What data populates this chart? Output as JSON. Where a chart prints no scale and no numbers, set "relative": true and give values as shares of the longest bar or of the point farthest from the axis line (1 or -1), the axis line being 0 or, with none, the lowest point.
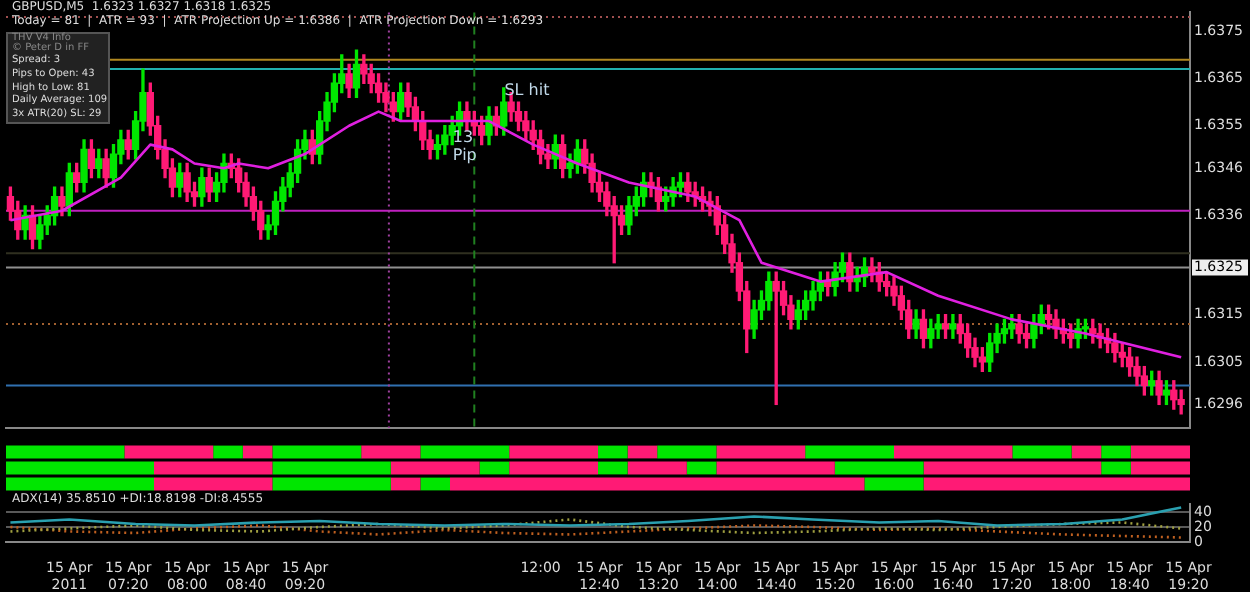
{
  "chart_data": [
    {
      "type": "candlestick",
      "title": "GBPUSD,M5  1.6323 1.6327 1.6318 1.6325",
      "subtitle": "Today = 81  |  ATR = 93  |  ATR Projection Up = 1.6386  |  ATR Projection Down = 1.6293",
      "colors": [
        "#ff1a75",
        "#ff1a75",
        "#00e600",
        "#ff1a75",
        "#00e600",
        "#00e600",
        "#00e600",
        "#ff1a75",
        "#00e600",
        "#ff1a75",
        "#00e600",
        "#ff1a75",
        "#00e600",
        "#ff1a75",
        "#00e600",
        "#00e600",
        "#ff1a75",
        "#00e600",
        "#00e600",
        "#ff1a75",
        "#ff1a75",
        "#ff1a75",
        "#ff1a75",
        "#00e600",
        "#ff1a75",
        "#ff1a75",
        "#00e600",
        "#ff1a75",
        "#00e600",
        "#00e600",
        "#ff1a75",
        "#ff1a75",
        "#ff1a75",
        "#ff1a75",
        "#ff1a75",
        "#00e600",
        "#00e600",
        "#00e600",
        "#00e600",
        "#00e600",
        "#00e600",
        "#ff1a75",
        "#00e600",
        "#00e600",
        "#00e600",
        "#00e600",
        "#ff1a75",
        "#00e600",
        "#ff1a75",
        "#ff1a75",
        "#ff1a75",
        "#ff1a75",
        "#ff1a75",
        "#00e600",
        "#ff1a75",
        "#ff1a75",
        "#ff1a75",
        "#ff1a75",
        "#00e600",
        "#00e600",
        "#00e600",
        "#00e600",
        "#ff1a75",
        "#ff1a75",
        "#ff1a75",
        "#00e600",
        "#ff1a75",
        "#00e600",
        "#ff1a75",
        "#ff1a75",
        "#ff1a75",
        "#ff1a75",
        "#ff1a75",
        "#ff1a75",
        "#00e600",
        "#ff1a75",
        "#00e600",
        "#00e600",
        "#ff1a75",
        "#ff1a75",
        "#ff1a75",
        "#ff1a75",
        "#ff1a75",
        "#ff1a75",
        "#00e600",
        "#00e600",
        "#00e600",
        "#ff1a75",
        "#ff1a75",
        "#00e600",
        "#00e600",
        "#00e600",
        "#ff1a75",
        "#ff1a75",
        "#ff1a75",
        "#ff1a75",
        "#ff1a75",
        "#ff1a75",
        "#ff1a75",
        "#ff1a75",
        "#ff1a75",
        "#00e600",
        "#00e600",
        "#00e600",
        "#ff1a75",
        "#ff1a75",
        "#ff1a75",
        "#00e600",
        "#00e600",
        "#00e600",
        "#00e600",
        "#ff1a75",
        "#00e600",
        "#00e600",
        "#ff1a75",
        "#00e600",
        "#00e600",
        "#ff1a75",
        "#ff1a75",
        "#ff1a75",
        "#ff1a75",
        "#ff1a75",
        "#ff1a75",
        "#00e600",
        "#ff1a75",
        "#00e600",
        "#00e600",
        "#ff1a75",
        "#00e600",
        "#ff1a75",
        "#ff1a75",
        "#ff1a75",
        "#ff1a75",
        "#00e600",
        "#00e600",
        "#00e600",
        "#00e600",
        "#ff1a75",
        "#ff1a75",
        "#00e600",
        "#00e600",
        "#ff1a75",
        "#ff1a75",
        "#ff1a75",
        "#ff1a75",
        "#00e600",
        "#00e600",
        "#ff1a75",
        "#ff1a75",
        "#ff1a75",
        "#ff1a75",
        "#ff1a75",
        "#ff1a75",
        "#ff1a75",
        "#ff1a75",
        "#00e600",
        "#ff1a75",
        "#00e600",
        "#ff1a75",
        "#ff1a75"
      ],
      "x": [
        "2011-04-15T06:00",
        "2011-04-15T06:05",
        "2011-04-15T06:10",
        "2011-04-15T06:15",
        "2011-04-15T06:20",
        "2011-04-15T06:25",
        "2011-04-15T06:30",
        "2011-04-15T06:35",
        "2011-04-15T06:40",
        "2011-04-15T06:45",
        "2011-04-15T06:50",
        "2011-04-15T06:55",
        "2011-04-15T07:00",
        "2011-04-15T07:05",
        "2011-04-15T07:10",
        "2011-04-15T07:15",
        "2011-04-15T07:20",
        "2011-04-15T07:25",
        "2011-04-15T07:30",
        "2011-04-15T07:35",
        "2011-04-15T07:40",
        "2011-04-15T07:45",
        "2011-04-15T07:50",
        "2011-04-15T07:55",
        "2011-04-15T08:00",
        "2011-04-15T08:05",
        "2011-04-15T08:10",
        "2011-04-15T08:15",
        "2011-04-15T08:20",
        "2011-04-15T08:25",
        "2011-04-15T08:30",
        "2011-04-15T08:35",
        "2011-04-15T08:40",
        "2011-04-15T08:45",
        "2011-04-15T08:50",
        "2011-04-15T08:55",
        "2011-04-15T09:00",
        "2011-04-15T09:05",
        "2011-04-15T09:10",
        "2011-04-15T09:15",
        "2011-04-15T09:20",
        "2011-04-15T09:25",
        "2011-04-15T09:30",
        "2011-04-15T09:35",
        "2011-04-15T09:40",
        "2011-04-15T09:45",
        "2011-04-15T09:50",
        "2011-04-15T09:55",
        "2011-04-15T10:00",
        "2011-04-15T10:05",
        "2011-04-15T10:10",
        "2011-04-15T10:15",
        "2011-04-15T10:20",
        "2011-04-15T10:25",
        "2011-04-15T10:30",
        "2011-04-15T10:35",
        "2011-04-15T10:40",
        "2011-04-15T10:45",
        "2011-04-15T10:50",
        "2011-04-15T10:55",
        "2011-04-15T11:00",
        "2011-04-15T11:05",
        "2011-04-15T11:10",
        "2011-04-15T11:15",
        "2011-04-15T11:20",
        "2011-04-15T11:25",
        "2011-04-15T11:30",
        "2011-04-15T11:35",
        "2011-04-15T11:40",
        "2011-04-15T11:45",
        "2011-04-15T11:50",
        "2011-04-15T11:55",
        "2011-04-15T12:00",
        "2011-04-15T12:05",
        "2011-04-15T12:10",
        "2011-04-15T12:15",
        "2011-04-15T12:20",
        "2011-04-15T12:25",
        "2011-04-15T12:30",
        "2011-04-15T12:35",
        "2011-04-15T12:40",
        "2011-04-15T12:45",
        "2011-04-15T12:50",
        "2011-04-15T12:55",
        "2011-04-15T13:00",
        "2011-04-15T13:05",
        "2011-04-15T13:10",
        "2011-04-15T13:15",
        "2011-04-15T13:20",
        "2011-04-15T13:25",
        "2011-04-15T13:30",
        "2011-04-15T13:35",
        "2011-04-15T13:40",
        "2011-04-15T13:45",
        "2011-04-15T13:50",
        "2011-04-15T13:55",
        "2011-04-15T14:00",
        "2011-04-15T14:05",
        "2011-04-15T14:10",
        "2011-04-15T14:15",
        "2011-04-15T14:20",
        "2011-04-15T14:25",
        "2011-04-15T14:30",
        "2011-04-15T14:35",
        "2011-04-15T14:40",
        "2011-04-15T14:45",
        "2011-04-15T14:50",
        "2011-04-15T14:55",
        "2011-04-15T15:00",
        "2011-04-15T15:05",
        "2011-04-15T15:10",
        "2011-04-15T15:15",
        "2011-04-15T15:20",
        "2011-04-15T15:25",
        "2011-04-15T15:30",
        "2011-04-15T15:35",
        "2011-04-15T15:40",
        "2011-04-15T15:45",
        "2011-04-15T15:50",
        "2011-04-15T15:55",
        "2011-04-15T16:00",
        "2011-04-15T16:05",
        "2011-04-15T16:10",
        "2011-04-15T16:15",
        "2011-04-15T16:20",
        "2011-04-15T16:25",
        "2011-04-15T16:30",
        "2011-04-15T16:35",
        "2011-04-15T16:40",
        "2011-04-15T16:45",
        "2011-04-15T16:50",
        "2011-04-15T16:55",
        "2011-04-15T17:00",
        "2011-04-15T17:05",
        "2011-04-15T17:10",
        "2011-04-15T17:15",
        "2011-04-15T17:20",
        "2011-04-15T17:25",
        "2011-04-15T17:30",
        "2011-04-15T17:35",
        "2011-04-15T17:40",
        "2011-04-15T17:45",
        "2011-04-15T17:50",
        "2011-04-15T17:55",
        "2011-04-15T18:00",
        "2011-04-15T18:05",
        "2011-04-15T18:10",
        "2011-04-15T18:15",
        "2011-04-15T18:20",
        "2011-04-15T18:25",
        "2011-04-15T18:30",
        "2011-04-15T18:35",
        "2011-04-15T18:40",
        "2011-04-15T18:45",
        "2011-04-15T18:50",
        "2011-04-15T18:55",
        "2011-04-15T19:00",
        "2011-04-15T19:05",
        "2011-04-15T19:10",
        "2011-04-15T19:15"
      ],
      "ohlc": [
        [
          1.634,
          1.6342,
          1.6335,
          1.6337
        ],
        [
          1.6337,
          1.6339,
          1.6331,
          1.6333
        ],
        [
          1.6333,
          1.6338,
          1.6331,
          1.6336
        ],
        [
          1.6336,
          1.6338,
          1.6329,
          1.6331
        ],
        [
          1.6331,
          1.6336,
          1.6329,
          1.6334
        ],
        [
          1.6334,
          1.6338,
          1.6332,
          1.6336
        ],
        [
          1.6336,
          1.6342,
          1.6334,
          1.634
        ],
        [
          1.634,
          1.6342,
          1.6336,
          1.6338
        ],
        [
          1.6338,
          1.6347,
          1.6336,
          1.6345
        ],
        [
          1.6345,
          1.6347,
          1.6341,
          1.6343
        ],
        [
          1.6343,
          1.6352,
          1.6341,
          1.635
        ],
        [
          1.635,
          1.6352,
          1.6344,
          1.6346
        ],
        [
          1.6346,
          1.635,
          1.6344,
          1.6348
        ],
        [
          1.6348,
          1.635,
          1.6342,
          1.6344
        ],
        [
          1.6344,
          1.6351,
          1.6342,
          1.6349
        ],
        [
          1.6349,
          1.6354,
          1.6347,
          1.6352
        ],
        [
          1.6352,
          1.6354,
          1.6348,
          1.635
        ],
        [
          1.635,
          1.6358,
          1.6348,
          1.6356
        ],
        [
          1.6356,
          1.6367,
          1.6354,
          1.6362
        ],
        [
          1.6362,
          1.6364,
          1.6353,
          1.6355
        ],
        [
          1.6355,
          1.6357,
          1.6348,
          1.635
        ],
        [
          1.635,
          1.6352,
          1.6344,
          1.6346
        ],
        [
          1.6346,
          1.6348,
          1.634,
          1.6342
        ],
        [
          1.6342,
          1.6347,
          1.634,
          1.6345
        ],
        [
          1.6345,
          1.6347,
          1.6339,
          1.6341
        ],
        [
          1.6341,
          1.6343,
          1.6338,
          1.634
        ],
        [
          1.634,
          1.6346,
          1.6338,
          1.6344
        ],
        [
          1.6344,
          1.6346,
          1.6339,
          1.6341
        ],
        [
          1.6341,
          1.6345,
          1.6339,
          1.6343
        ],
        [
          1.6343,
          1.6349,
          1.6341,
          1.6347
        ],
        [
          1.6347,
          1.6349,
          1.6344,
          1.6346
        ],
        [
          1.6346,
          1.6348,
          1.6341,
          1.6343
        ],
        [
          1.6343,
          1.6345,
          1.6338,
          1.634
        ],
        [
          1.634,
          1.6342,
          1.6335,
          1.6337
        ],
        [
          1.6337,
          1.6339,
          1.6331,
          1.6333
        ],
        [
          1.6333,
          1.6336,
          1.6331,
          1.6334
        ],
        [
          1.6334,
          1.6341,
          1.6332,
          1.6339
        ],
        [
          1.6339,
          1.6344,
          1.6337,
          1.6342
        ],
        [
          1.6342,
          1.6347,
          1.634,
          1.6345
        ],
        [
          1.6345,
          1.6352,
          1.6343,
          1.635
        ],
        [
          1.635,
          1.6354,
          1.6348,
          1.6352
        ],
        [
          1.6352,
          1.6354,
          1.6347,
          1.6349
        ],
        [
          1.6349,
          1.6358,
          1.6347,
          1.6356
        ],
        [
          1.6356,
          1.6362,
          1.6354,
          1.636
        ],
        [
          1.636,
          1.6366,
          1.6358,
          1.6364
        ],
        [
          1.6364,
          1.637,
          1.6362,
          1.6366
        ],
        [
          1.6366,
          1.6368,
          1.6361,
          1.6363
        ],
        [
          1.6363,
          1.6371,
          1.6361,
          1.6368
        ],
        [
          1.6368,
          1.637,
          1.6364,
          1.6366
        ],
        [
          1.6366,
          1.6368,
          1.6362,
          1.6364
        ],
        [
          1.6364,
          1.6366,
          1.636,
          1.6362
        ],
        [
          1.6362,
          1.6364,
          1.6358,
          1.636
        ],
        [
          1.636,
          1.6362,
          1.6356,
          1.6358
        ],
        [
          1.6358,
          1.6364,
          1.6356,
          1.6362
        ],
        [
          1.6362,
          1.6364,
          1.6357,
          1.6359
        ],
        [
          1.6359,
          1.6361,
          1.6354,
          1.6356
        ],
        [
          1.6356,
          1.6358,
          1.635,
          1.6352
        ],
        [
          1.6352,
          1.6354,
          1.6348,
          1.635
        ],
        [
          1.635,
          1.6353,
          1.6348,
          1.6351
        ],
        [
          1.6351,
          1.6355,
          1.6349,
          1.6353
        ],
        [
          1.6353,
          1.6357,
          1.6351,
          1.6355
        ],
        [
          1.6355,
          1.636,
          1.6353,
          1.6358
        ],
        [
          1.6358,
          1.636,
          1.6354,
          1.6356
        ],
        [
          1.6356,
          1.6358,
          1.6353,
          1.6355
        ],
        [
          1.6355,
          1.6357,
          1.6351,
          1.6353
        ],
        [
          1.6353,
          1.6359,
          1.6351,
          1.6357
        ],
        [
          1.6357,
          1.6359,
          1.6353,
          1.6355
        ],
        [
          1.6355,
          1.6363,
          1.6353,
          1.636
        ],
        [
          1.636,
          1.6362,
          1.6356,
          1.6358
        ],
        [
          1.6358,
          1.636,
          1.6354,
          1.6356
        ],
        [
          1.6356,
          1.6358,
          1.6352,
          1.6354
        ],
        [
          1.6354,
          1.6356,
          1.635,
          1.6352
        ],
        [
          1.6352,
          1.6354,
          1.6347,
          1.6349
        ],
        [
          1.6349,
          1.6351,
          1.6346,
          1.6348
        ],
        [
          1.6348,
          1.6353,
          1.6346,
          1.6351
        ],
        [
          1.6351,
          1.6353,
          1.6344,
          1.6346
        ],
        [
          1.6346,
          1.6349,
          1.6344,
          1.6347
        ],
        [
          1.6347,
          1.6352,
          1.6345,
          1.635
        ],
        [
          1.635,
          1.6352,
          1.6345,
          1.6347
        ],
        [
          1.6347,
          1.6349,
          1.6341,
          1.6343
        ],
        [
          1.6343,
          1.6345,
          1.6339,
          1.6341
        ],
        [
          1.6341,
          1.6343,
          1.6336,
          1.6338
        ],
        [
          1.6338,
          1.634,
          1.6326,
          1.6336
        ],
        [
          1.6336,
          1.6338,
          1.6332,
          1.6334
        ],
        [
          1.6334,
          1.634,
          1.6332,
          1.6338
        ],
        [
          1.6338,
          1.6342,
          1.6336,
          1.634
        ],
        [
          1.634,
          1.6345,
          1.6338,
          1.6343
        ],
        [
          1.6343,
          1.6345,
          1.634,
          1.6342
        ],
        [
          1.6342,
          1.6344,
          1.6337,
          1.6339
        ],
        [
          1.6339,
          1.6342,
          1.6337,
          1.634
        ],
        [
          1.634,
          1.6344,
          1.6338,
          1.6342
        ],
        [
          1.6342,
          1.6345,
          1.634,
          1.6343
        ],
        [
          1.6343,
          1.6345,
          1.6339,
          1.6341
        ],
        [
          1.6341,
          1.6343,
          1.6338,
          1.634
        ],
        [
          1.634,
          1.6342,
          1.6337,
          1.6339
        ],
        [
          1.6339,
          1.6341,
          1.6336,
          1.6338
        ],
        [
          1.6338,
          1.634,
          1.6332,
          1.6334
        ],
        [
          1.6334,
          1.6336,
          1.6328,
          1.633
        ],
        [
          1.633,
          1.6332,
          1.6324,
          1.6326
        ],
        [
          1.6326,
          1.6328,
          1.6318,
          1.632
        ],
        [
          1.632,
          1.6322,
          1.6307,
          1.6312
        ],
        [
          1.6312,
          1.6318,
          1.631,
          1.6316
        ],
        [
          1.6316,
          1.632,
          1.6314,
          1.6318
        ],
        [
          1.6318,
          1.6324,
          1.6316,
          1.6322
        ],
        [
          1.6322,
          1.6324,
          1.6296,
          1.632
        ],
        [
          1.632,
          1.6322,
          1.6315,
          1.6317
        ],
        [
          1.6317,
          1.6319,
          1.6312,
          1.6314
        ],
        [
          1.6314,
          1.6318,
          1.6312,
          1.6316
        ],
        [
          1.6316,
          1.632,
          1.6314,
          1.6318
        ],
        [
          1.6318,
          1.6322,
          1.6316,
          1.632
        ],
        [
          1.632,
          1.6324,
          1.6318,
          1.6322
        ],
        [
          1.6322,
          1.6324,
          1.6319,
          1.6321
        ],
        [
          1.6321,
          1.6326,
          1.6319,
          1.6324
        ],
        [
          1.6324,
          1.6328,
          1.6322,
          1.6326
        ],
        [
          1.6326,
          1.6328,
          1.632,
          1.6322
        ],
        [
          1.6322,
          1.6325,
          1.632,
          1.6323
        ],
        [
          1.6323,
          1.6327,
          1.6321,
          1.6325
        ],
        [
          1.6325,
          1.6327,
          1.6322,
          1.6324
        ],
        [
          1.6324,
          1.6326,
          1.632,
          1.6322
        ],
        [
          1.6322,
          1.6324,
          1.6319,
          1.6321
        ],
        [
          1.6321,
          1.6323,
          1.6317,
          1.6319
        ],
        [
          1.6319,
          1.6321,
          1.6314,
          1.6316
        ],
        [
          1.6316,
          1.6318,
          1.631,
          1.6312
        ],
        [
          1.6312,
          1.6316,
          1.631,
          1.6314
        ],
        [
          1.6314,
          1.6316,
          1.6308,
          1.631
        ],
        [
          1.631,
          1.6314,
          1.6308,
          1.6312
        ],
        [
          1.6312,
          1.6315,
          1.631,
          1.6313
        ],
        [
          1.6313,
          1.6315,
          1.631,
          1.6312
        ],
        [
          1.6312,
          1.6315,
          1.631,
          1.6313
        ],
        [
          1.6313,
          1.6315,
          1.6309,
          1.6311
        ],
        [
          1.6311,
          1.6313,
          1.6306,
          1.6308
        ],
        [
          1.6308,
          1.631,
          1.6304,
          1.6306
        ],
        [
          1.6306,
          1.6308,
          1.6303,
          1.6305
        ],
        [
          1.6305,
          1.6311,
          1.6303,
          1.6309
        ],
        [
          1.6309,
          1.6313,
          1.6307,
          1.6311
        ],
        [
          1.6311,
          1.6314,
          1.6309,
          1.6312
        ],
        [
          1.6312,
          1.6315,
          1.631,
          1.6313
        ],
        [
          1.6313,
          1.6315,
          1.6309,
          1.6311
        ],
        [
          1.6311,
          1.6313,
          1.6308,
          1.631
        ],
        [
          1.631,
          1.6315,
          1.6308,
          1.6313
        ],
        [
          1.6313,
          1.6317,
          1.6311,
          1.6315
        ],
        [
          1.6315,
          1.6317,
          1.6312,
          1.6314
        ],
        [
          1.6314,
          1.6316,
          1.631,
          1.6312
        ],
        [
          1.6312,
          1.6314,
          1.6309,
          1.6311
        ],
        [
          1.6311,
          1.6313,
          1.6308,
          1.631
        ],
        [
          1.631,
          1.6314,
          1.6308,
          1.6312
        ],
        [
          1.6312,
          1.6314,
          1.631,
          1.6312
        ],
        [
          1.6312,
          1.6314,
          1.6309,
          1.6311
        ],
        [
          1.6311,
          1.6313,
          1.6308,
          1.631
        ],
        [
          1.631,
          1.6312,
          1.6307,
          1.6309
        ],
        [
          1.6309,
          1.6311,
          1.6305,
          1.6307
        ],
        [
          1.6307,
          1.6309,
          1.6304,
          1.6306
        ],
        [
          1.6306,
          1.6308,
          1.6302,
          1.6304
        ],
        [
          1.6304,
          1.6306,
          1.63,
          1.6302
        ],
        [
          1.6302,
          1.6304,
          1.6298,
          1.63
        ],
        [
          1.63,
          1.6303,
          1.6298,
          1.6301
        ],
        [
          1.6301,
          1.6303,
          1.6296,
          1.6298
        ],
        [
          1.6298,
          1.6301,
          1.6296,
          1.6299
        ],
        [
          1.6299,
          1.6301,
          1.6295,
          1.6297
        ],
        [
          1.6297,
          1.6299,
          1.6294,
          1.6296
        ]
      ],
      "series": [
        {
          "type": "line",
          "color": "#e020e0",
          "x": [
            "2011-04-15T06:00",
            "2011-04-15T06:35",
            "2011-04-15T07:15",
            "2011-04-15T07:35",
            "2011-04-15T07:50",
            "2011-04-15T08:05",
            "2011-04-15T08:25",
            "2011-04-15T08:35",
            "2011-04-15T08:55",
            "2011-04-15T09:20",
            "2011-04-15T09:50",
            "2011-04-15T10:10",
            "2011-04-15T10:25",
            "2011-04-15T11:00",
            "2011-04-15T11:25",
            "2011-04-15T11:55",
            "2011-04-15T12:25",
            "2011-04-15T13:00",
            "2011-04-15T13:45",
            "2011-04-15T14:15",
            "2011-04-15T14:30",
            "2011-04-15T15:10",
            "2011-04-15T15:55",
            "2011-04-15T16:30",
            "2011-04-15T17:20",
            "2011-04-15T18:10",
            "2011-04-15T19:15"
          ],
          "values": [
            1.6335,
            1.6337,
            1.6344,
            1.6351,
            1.635,
            1.6347,
            1.6346,
            1.6347,
            1.6346,
            1.6349,
            1.6355,
            1.6358,
            1.6356,
            1.6356,
            1.6356,
            1.6351,
            1.6347,
            1.6343,
            1.634,
            1.6335,
            1.6326,
            1.6322,
            1.6324,
            1.6319,
            1.6314,
            1.6311,
            1.6306
          ]
        }
      ],
      "marker": "none",
      "xlim": [
        "2011-04-15T05:57",
        "2011-04-15T19:21"
      ],
      "ylim": [
        1.6291,
        1.6379
      ],
      "yticks": [
        1.6375,
        1.6365,
        1.6355,
        1.6346,
        1.6336,
        1.6315,
        1.6305,
        1.6296
      ],
      "tick_labels": "y",
      "ref_lines": [
        {
          "axis": "y",
          "value": 1.6378,
          "color": "#a05050",
          "line_style": "dotted"
        },
        {
          "axis": "y",
          "value": 1.6369,
          "color": "#b08820"
        },
        {
          "axis": "y",
          "value": 1.6367,
          "color": "#20b0b0"
        },
        {
          "axis": "y",
          "value": 1.6337,
          "color": "#c020c0"
        },
        {
          "axis": "y",
          "value": 1.6328,
          "color": "#303020"
        },
        {
          "axis": "y",
          "value": 1.6325,
          "color": "#909090",
          "label": "1.6325"
        },
        {
          "axis": "y",
          "value": 1.6313,
          "color": "#a06030",
          "line_style": "dotted"
        },
        {
          "axis": "y",
          "value": 1.63,
          "color": "#3070b0"
        },
        {
          "axis": "x",
          "value": "2011-04-15T10:17",
          "color": "#a040a0",
          "line_style": "dotted"
        },
        {
          "axis": "x",
          "value": "2011-04-15T11:15",
          "color": "#208020",
          "line_style": "dashed"
        }
      ],
      "annotations": [
        "THV V4 Info",
        "© Peter D in FF",
        "Spread: 3",
        "Pips to Open: 43",
        "High to Low: 81",
        "Daily Average: 109",
        "3x ATR(20) SL: 29",
        {
          "text": "SL hit",
          "x": "2011-04-15T11:30",
          "y": 1.6359
        },
        {
          "text": "13",
          "x": "2011-04-15T10:55",
          "y": 1.6349
        },
        {
          "text": "Pip",
          "x": "2011-04-15T10:55",
          "y": 1.6349
        }
      ]
    },
    {
      "type": "bar",
      "orientation": "horizontal",
      "stacked": true,
      "relative": true,
      "tick_labels": false,
      "categories": [
        null,
        null,
        null
      ],
      "series": [
        {
          "color": "#00e600",
          "values": [
            0.1,
            0.125,
            0.125
          ]
        },
        {
          "color": "#ff1a75",
          "values": [
            0.075,
            0.1,
            0.1
          ]
        },
        {
          "color": "#00e600",
          "values": [
            0.025,
            0.1,
            0.1
          ]
        },
        {
          "color": "#ff1a75",
          "values": [
            0.025,
            0.075,
            0.025
          ]
        },
        {
          "color": "#00e600",
          "values": [
            0.075,
            0.025,
            0.025
          ]
        },
        {
          "color": "#ff1a75",
          "values": [
            0.05,
            0.075,
            0.35
          ]
        },
        {
          "color": "#00e600",
          "values": [
            0.075,
            0.025,
            0.05
          ]
        },
        {
          "color": "#ff1a75",
          "values": [
            0.075,
            0.05,
            0.225
          ]
        },
        {
          "color": "#00e600",
          "values": [
            0.025,
            0.025,
            null
          ]
        },
        {
          "color": "#ff1a75",
          "values": [
            0.025,
            0.1,
            null
          ]
        },
        {
          "color": "#00e600",
          "values": [
            0.05,
            0.075,
            null
          ]
        },
        {
          "color": "#ff1a75",
          "values": [
            0.075,
            0.15,
            null
          ]
        },
        {
          "color": "#00e600",
          "values": [
            0.075,
            0.025,
            null
          ]
        },
        {
          "color": "#ff1a75",
          "values": [
            0.1,
            0.05,
            null
          ]
        },
        {
          "color": "#00e600",
          "values": [
            0.05,
            null,
            null
          ]
        },
        {
          "color": "#ff1a75",
          "values": [
            0.025,
            null,
            null
          ]
        },
        {
          "color": "#00e600",
          "values": [
            0.025,
            null,
            null
          ]
        },
        {
          "color": "#ff1a75",
          "values": [
            0.05,
            null,
            null
          ]
        }
      ]
    },
    {
      "type": "line",
      "title": "ADX(14) 35.8510 +DI:18.8198 -DI:8.4555",
      "xlim": [
        "2011-04-15T05:57",
        "2011-04-15T19:21"
      ],
      "ylim": [
        0,
        50
      ],
      "yticks": [
        0,
        20,
        40
      ],
      "grid": "y",
      "marker": "none",
      "xticks": [
        {
          "value": "2011-04-15T06:40",
          "label": "15 Apr 2011"
        },
        {
          "value": "2011-04-15T07:20",
          "label": "15 Apr 07:20"
        },
        {
          "value": "2011-04-15T08:00",
          "label": "15 Apr 08:00"
        },
        {
          "value": "2011-04-15T08:40",
          "label": "15 Apr 08:40"
        },
        {
          "value": "2011-04-15T09:20",
          "label": "15 Apr 09:20"
        },
        {
          "value": "2011-04-15T12:00",
          "label": "12:00"
        },
        {
          "value": "2011-04-15T12:40",
          "label": "15 Apr 12:40"
        },
        {
          "value": "2011-04-15T13:20",
          "label": "15 Apr 13:20"
        },
        {
          "value": "2011-04-15T14:00",
          "label": "15 Apr 14:00"
        },
        {
          "value": "2011-04-15T14:40",
          "label": "15 Apr 14:40"
        },
        {
          "value": "2011-04-15T15:20",
          "label": "15 Apr 15:20"
        },
        {
          "value": "2011-04-15T16:00",
          "label": "15 Apr 16:00"
        },
        {
          "value": "2011-04-15T16:40",
          "label": "15 Apr 16:40"
        },
        {
          "value": "2011-04-15T17:20",
          "label": "15 Apr 17:20"
        },
        {
          "value": "2011-04-15T18:00",
          "label": "15 Apr 18:00"
        },
        {
          "value": "2011-04-15T18:40",
          "label": "15 Apr 18:40"
        },
        {
          "value": "2011-04-15T19:20",
          "label": "15 Apr 19:20"
        }
      ],
      "x": [
        "2011-04-15T06:00",
        "2011-04-15T06:40",
        "2011-04-15T07:25",
        "2011-04-15T08:05",
        "2011-04-15T08:50",
        "2011-04-15T09:30",
        "2011-04-15T10:10",
        "2011-04-15T10:55",
        "2011-04-15T11:35",
        "2011-04-15T12:20",
        "2011-04-15T13:00",
        "2011-04-15T13:40",
        "2011-04-15T14:25",
        "2011-04-15T15:05",
        "2011-04-15T15:50",
        "2011-04-15T16:30",
        "2011-04-15T17:10",
        "2011-04-15T17:55",
        "2011-04-15T18:35",
        "2011-04-15T19:15"
      ],
      "series": [
        {
          "color": "#2aa0b0",
          "values": [
            26,
            30,
            24,
            22,
            26,
            28,
            24,
            22,
            24,
            22,
            24,
            28,
            34,
            30,
            26,
            28,
            22,
            24,
            30,
            46
          ]
        },
        {
          "color": "#a0a040",
          "line_style": "dotted",
          "values": [
            14,
            18,
            22,
            16,
            14,
            20,
            24,
            18,
            22,
            30,
            20,
            16,
            12,
            14,
            18,
            16,
            20,
            24,
            26,
            18
          ]
        },
        {
          "color": "#c06020",
          "line_style": "dotted",
          "values": [
            20,
            14,
            12,
            18,
            22,
            14,
            10,
            16,
            12,
            10,
            14,
            18,
            22,
            20,
            16,
            18,
            14,
            10,
            8,
            6
          ]
        }
      ]
    }
  ]
}
